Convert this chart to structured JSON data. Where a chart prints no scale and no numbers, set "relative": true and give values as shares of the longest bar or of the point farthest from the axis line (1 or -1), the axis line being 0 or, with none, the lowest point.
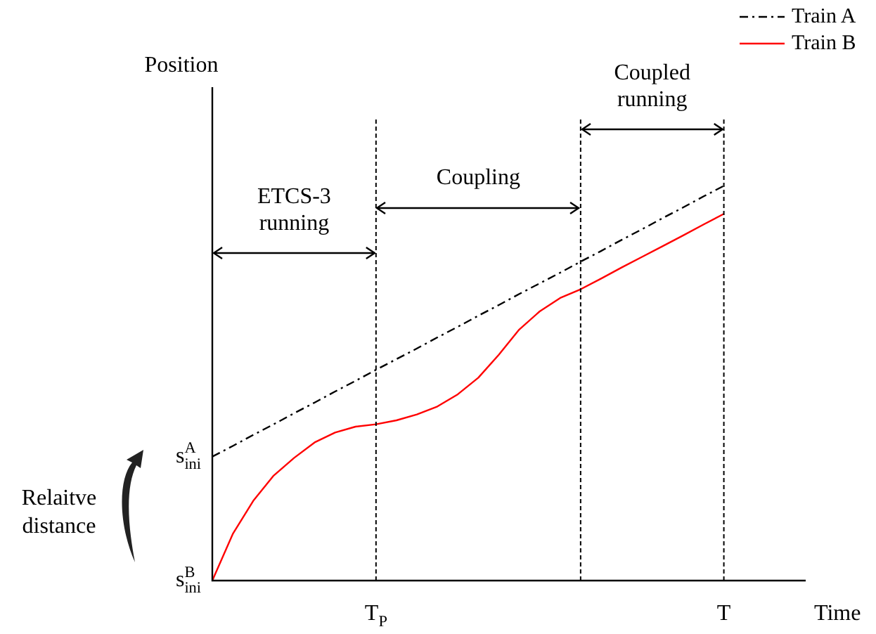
{
  "chart_data": {
    "type": "line",
    "relative": true,
    "xlabel": "Time",
    "ylabel": "Position",
    "legend": "top right",
    "categories": [
      null,
      null,
      null,
      null,
      null,
      null,
      null,
      null,
      "T$_{P}$",
      null,
      null,
      null,
      null,
      null,
      null,
      null,
      null,
      null,
      null,
      null,
      null,
      null,
      null,
      null,
      null,
      "T",
      null,
      null,
      null,
      null
    ],
    "series": [
      {
        "name": "Train A",
        "color": "#000000",
        "line_style": "dashed",
        "values": [
          0.314,
          0.341,
          0.369,
          0.396,
          0.424,
          0.451,
          0.479,
          0.506,
          0.534,
          0.561,
          0.588,
          0.616,
          0.643,
          0.671,
          0.698,
          0.726,
          0.753,
          0.78,
          0.808,
          0.835,
          0.863,
          0.89,
          0.918,
          0.945,
          0.973,
          1,
          null,
          null,
          null,
          null
        ]
      },
      {
        "name": "Train B",
        "color": "#ff0000",
        "line_style": "solid",
        "values": [
          0,
          0.118,
          0.202,
          0.266,
          0.311,
          0.35,
          0.375,
          0.39,
          0.396,
          0.406,
          0.421,
          0.441,
          0.472,
          0.514,
          0.572,
          0.636,
          0.682,
          0.716,
          0.738,
          0.765,
          0.793,
          0.82,
          0.847,
          0.874,
          0.902,
          0.929,
          null,
          null,
          null,
          null
        ]
      }
    ],
    "grid": "x",
    "annotations": [
      "ETCS-3 running",
      "Coupling",
      "Coupled running",
      "s$^{A}$$_{ini}$",
      "s$^{B}$$_{ini}$",
      "Relaitve distance"
    ]
  }
}
